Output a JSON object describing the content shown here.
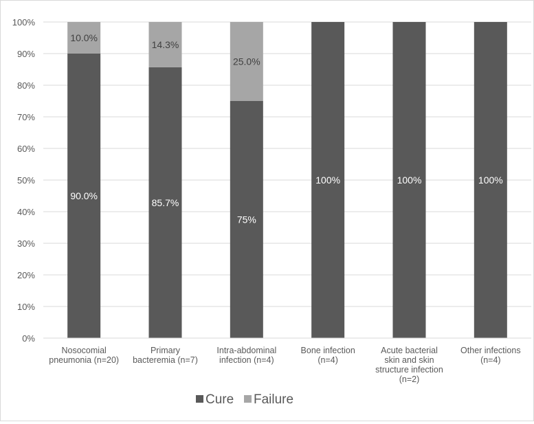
{
  "chart_data": {
    "type": "bar",
    "stacked": true,
    "percent": true,
    "categories": [
      [
        "Nosocomial",
        "pneumonia (n=20)"
      ],
      [
        "Primary",
        "bacteremia (n=7)"
      ],
      [
        "Intra-abdominal",
        "infection (n=4)"
      ],
      [
        "Bone infection",
        "(n=4)"
      ],
      [
        "Acute bacterial",
        "skin and skin",
        "structure infection",
        "(n=2)"
      ],
      [
        "Other infections",
        "(n=4)"
      ]
    ],
    "series": [
      {
        "name": "Cure",
        "color": "#595959",
        "values": [
          90.0,
          85.7,
          75,
          100,
          100,
          100
        ],
        "labels": [
          "90.0%",
          "85.7%",
          "75%",
          "100%",
          "100%",
          "100%"
        ]
      },
      {
        "name": "Failure",
        "color": "#a6a6a6",
        "values": [
          10.0,
          14.3,
          25.0,
          0,
          0,
          0
        ],
        "labels": [
          "10.0%",
          "14.3%",
          "25.0%",
          "",
          "",
          ""
        ]
      }
    ],
    "y_ticks": [
      "0%",
      "10%",
      "20%",
      "30%",
      "40%",
      "50%",
      "60%",
      "70%",
      "80%",
      "90%",
      "100%"
    ],
    "ylim": [
      0,
      100
    ],
    "grid": true,
    "legend": "bottom"
  }
}
